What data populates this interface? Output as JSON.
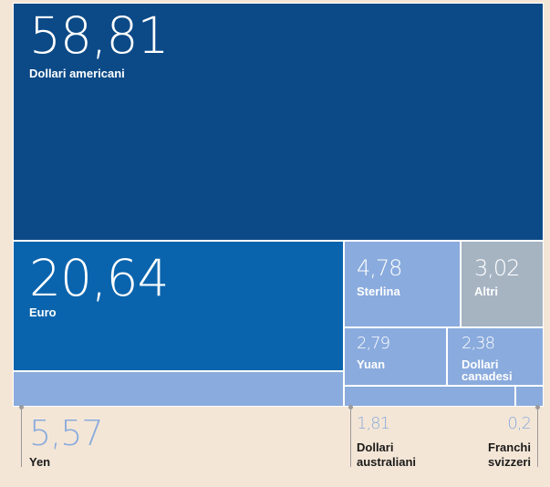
{
  "chart_data": {
    "type": "treemap",
    "title": "",
    "unit": "",
    "items": [
      {
        "value": "58,81",
        "label": "Dollari americani",
        "color": "#0c4a87"
      },
      {
        "value": "20,64",
        "label": "Euro",
        "color": "#0a64ad"
      },
      {
        "value": "5,57",
        "label": "Yen",
        "color": "#8aabdd"
      },
      {
        "value": "4,78",
        "label": "Sterlina",
        "color": "#8aabdd"
      },
      {
        "value": "3,02",
        "label": "Altri",
        "color": "#a6b4c2"
      },
      {
        "value": "2,79",
        "label": "Yuan",
        "color": "#8aabdd"
      },
      {
        "value": "2,38",
        "label": "Dollari canadesi",
        "color": "#8aabdd"
      },
      {
        "value": "1,81",
        "label": "Dollari australiani",
        "color": "#8aabdd"
      },
      {
        "value": "0,2",
        "label": "Franchi svizzeri",
        "color": "#8aabdd"
      }
    ]
  },
  "colors": {
    "background": "#f4e6d6",
    "text_white": "#ffffff",
    "callout_number": "#8aabdd",
    "callout_label": "#1a1a1a",
    "pin": "#9a9a9a",
    "border": "#ffffff"
  }
}
